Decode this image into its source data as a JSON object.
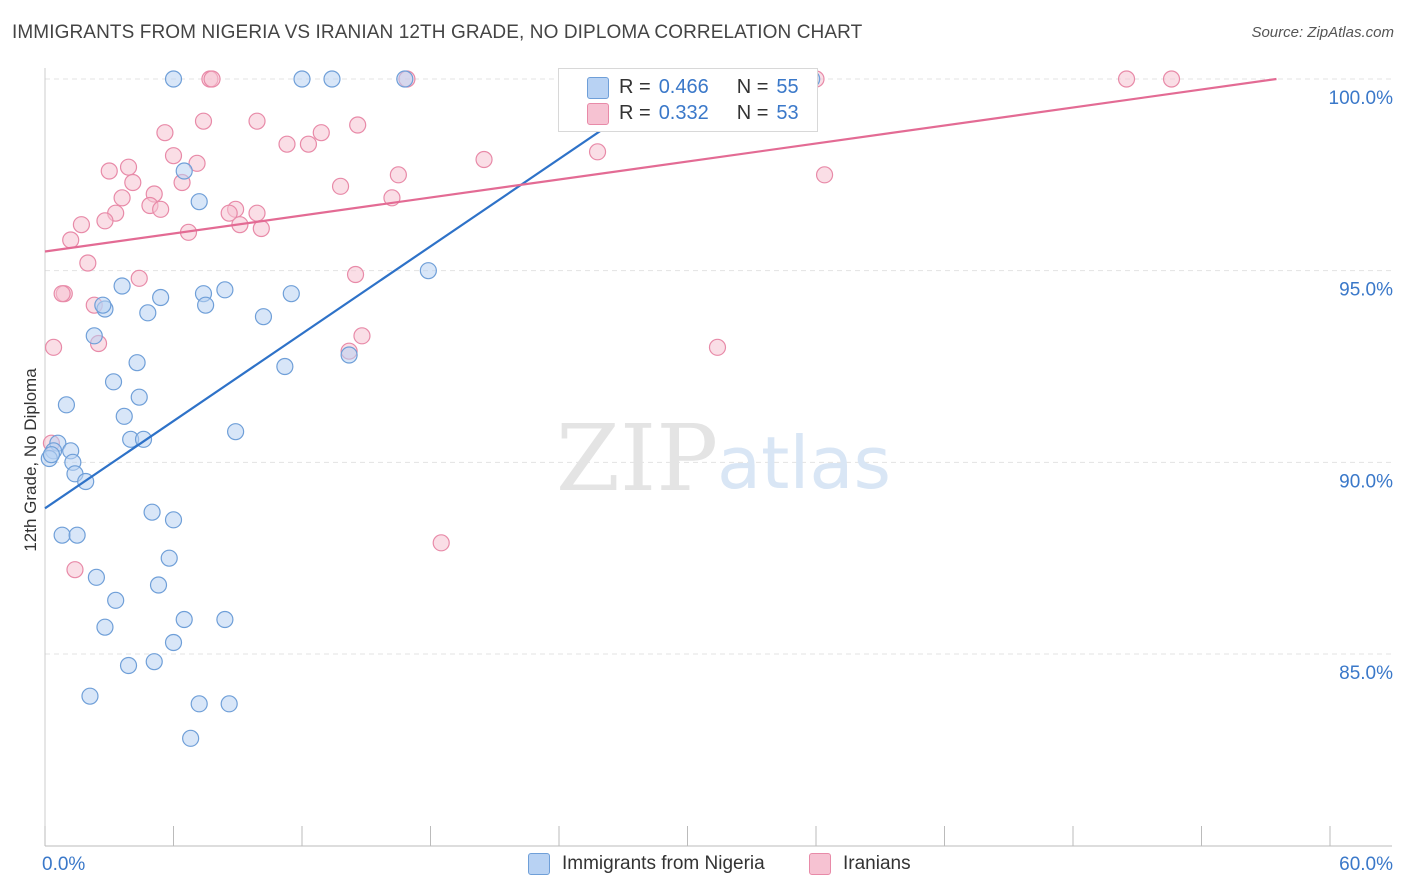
{
  "title": "IMMIGRANTS FROM NIGERIA VS IRANIAN 12TH GRADE, NO DIPLOMA CORRELATION CHART",
  "source": "Source: ZipAtlas.com",
  "watermark": {
    "zip": "ZIP",
    "atlas": "atlas"
  },
  "colors": {
    "blue_fill": "#b8d2f3",
    "blue_stroke": "#6f9fd8",
    "blue_line": "#2e72c8",
    "pink_fill": "#f6c2d2",
    "pink_stroke": "#e88aa8",
    "pink_line": "#e36b94",
    "tick_label": "#3a78c9"
  },
  "legend": {
    "r_label": "R =",
    "n_label": "N =",
    "series": [
      {
        "name": "Immigrants from Nigeria",
        "r": "0.466",
        "n": "55"
      },
      {
        "name": "Iranians",
        "r": "0.332",
        "n": "53"
      }
    ]
  },
  "chart_data": {
    "type": "scatter",
    "title": "IMMIGRANTS FROM NIGERIA VS IRANIAN 12TH GRADE, NO DIPLOMA CORRELATION CHART",
    "xlabel": "",
    "ylabel": "12th Grade, No Diploma",
    "xlim": [
      0,
      60
    ],
    "ylim": [
      80.3,
      100.4
    ],
    "x_tick_labels": [
      "0.0%",
      "60.0%"
    ],
    "y_ticks": [
      85,
      90,
      95,
      100
    ],
    "y_tick_labels": [
      "85.0%",
      "90.0%",
      "95.0%",
      "100.0%"
    ],
    "grid": true,
    "legend_position": "top-center",
    "series": [
      {
        "name": "Immigrants from Nigeria",
        "trend": {
          "x": [
            0,
            29.5
          ],
          "y": [
            88.8,
            100.0
          ]
        },
        "points": [
          [
            6.0,
            100.0
          ],
          [
            12.0,
            100.0
          ],
          [
            13.4,
            100.0
          ],
          [
            16.8,
            100.0
          ],
          [
            35.8,
            100.0
          ],
          [
            6.5,
            97.6
          ],
          [
            7.2,
            96.8
          ],
          [
            17.9,
            95.0
          ],
          [
            3.6,
            94.6
          ],
          [
            5.4,
            94.3
          ],
          [
            7.4,
            94.4
          ],
          [
            8.4,
            94.5
          ],
          [
            11.5,
            94.4
          ],
          [
            2.8,
            94.0
          ],
          [
            2.7,
            94.1
          ],
          [
            4.8,
            93.9
          ],
          [
            7.5,
            94.1
          ],
          [
            10.2,
            93.8
          ],
          [
            2.3,
            93.3
          ],
          [
            4.3,
            92.6
          ],
          [
            11.2,
            92.5
          ],
          [
            14.2,
            92.8
          ],
          [
            3.2,
            92.1
          ],
          [
            4.4,
            91.7
          ],
          [
            1.0,
            91.5
          ],
          [
            3.7,
            91.2
          ],
          [
            8.9,
            90.8
          ],
          [
            4.0,
            90.6
          ],
          [
            4.6,
            90.6
          ],
          [
            0.6,
            90.5
          ],
          [
            1.2,
            90.3
          ],
          [
            0.4,
            90.3
          ],
          [
            0.2,
            90.1
          ],
          [
            1.3,
            90.0
          ],
          [
            1.4,
            89.7
          ],
          [
            1.9,
            89.5
          ],
          [
            5.0,
            88.7
          ],
          [
            6.0,
            88.5
          ],
          [
            0.8,
            88.1
          ],
          [
            1.5,
            88.1
          ],
          [
            5.8,
            87.5
          ],
          [
            2.4,
            87.0
          ],
          [
            5.3,
            86.8
          ],
          [
            3.3,
            86.4
          ],
          [
            6.5,
            85.9
          ],
          [
            8.4,
            85.9
          ],
          [
            2.8,
            85.7
          ],
          [
            6.0,
            85.3
          ],
          [
            5.1,
            84.8
          ],
          [
            3.9,
            84.7
          ],
          [
            2.1,
            83.9
          ],
          [
            7.2,
            83.7
          ],
          [
            8.6,
            83.7
          ],
          [
            6.8,
            82.8
          ],
          [
            0.3,
            90.2
          ]
        ]
      },
      {
        "name": "Iranians",
        "trend": {
          "x": [
            0,
            57.5
          ],
          "y": [
            95.5,
            100.0
          ]
        },
        "points": [
          [
            7.7,
            100.0
          ],
          [
            16.9,
            100.0
          ],
          [
            36.0,
            100.0
          ],
          [
            50.5,
            100.0
          ],
          [
            52.6,
            100.0
          ],
          [
            5.6,
            98.6
          ],
          [
            7.4,
            98.9
          ],
          [
            9.9,
            98.9
          ],
          [
            12.9,
            98.6
          ],
          [
            14.6,
            98.8
          ],
          [
            11.3,
            98.3
          ],
          [
            12.3,
            98.3
          ],
          [
            25.8,
            98.1
          ],
          [
            6.0,
            98.0
          ],
          [
            20.5,
            97.9
          ],
          [
            7.1,
            97.8
          ],
          [
            3.9,
            97.7
          ],
          [
            3.0,
            97.6
          ],
          [
            16.5,
            97.5
          ],
          [
            36.4,
            97.5
          ],
          [
            4.1,
            97.3
          ],
          [
            6.4,
            97.3
          ],
          [
            13.8,
            97.2
          ],
          [
            5.1,
            97.0
          ],
          [
            3.6,
            96.9
          ],
          [
            16.2,
            96.9
          ],
          [
            4.9,
            96.7
          ],
          [
            8.9,
            96.6
          ],
          [
            5.4,
            96.6
          ],
          [
            3.3,
            96.5
          ],
          [
            2.8,
            96.3
          ],
          [
            9.9,
            96.5
          ],
          [
            8.6,
            96.5
          ],
          [
            1.7,
            96.2
          ],
          [
            10.1,
            96.1
          ],
          [
            6.7,
            96.0
          ],
          [
            9.1,
            96.2
          ],
          [
            1.2,
            95.8
          ],
          [
            2.0,
            95.2
          ],
          [
            14.5,
            94.9
          ],
          [
            4.4,
            94.8
          ],
          [
            0.9,
            94.4
          ],
          [
            0.8,
            94.4
          ],
          [
            2.3,
            94.1
          ],
          [
            14.8,
            93.3
          ],
          [
            0.4,
            93.0
          ],
          [
            2.5,
            93.1
          ],
          [
            31.4,
            93.0
          ],
          [
            14.2,
            92.9
          ],
          [
            18.5,
            87.9
          ],
          [
            1.4,
            87.2
          ],
          [
            0.3,
            90.5
          ],
          [
            7.8,
            100.0
          ]
        ]
      }
    ]
  }
}
